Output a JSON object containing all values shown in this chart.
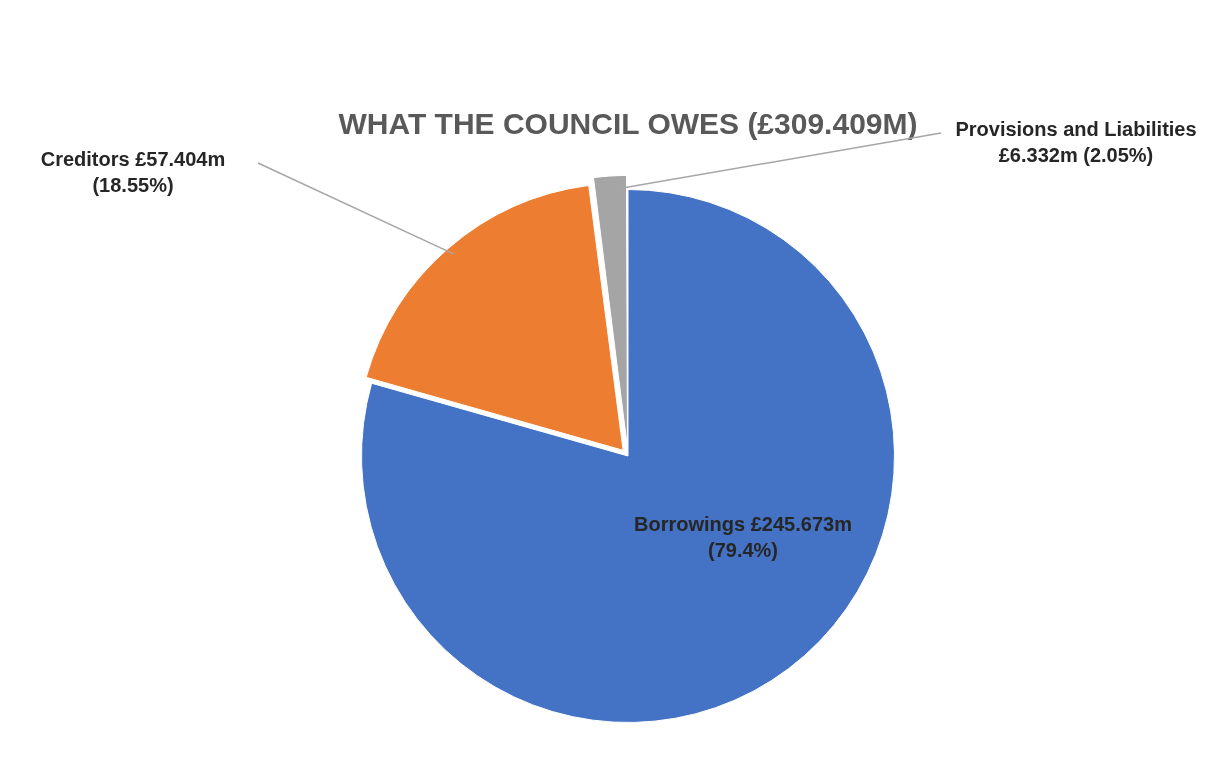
{
  "chart_data": {
    "type": "pie",
    "title": "WHAT THE COUNCIL OWES (£309.409M)",
    "categories": [
      "Borrowings",
      "Creditors",
      "Provisions and Liabilities"
    ],
    "values": [
      79.4,
      18.55,
      2.05
    ],
    "colors": [
      "#4472c4",
      "#ed7d31",
      "#a5a5a5"
    ],
    "value_labels": [
      "£245.673m (79.4%)",
      "£57.404m (18.55%)",
      "£6.332m (2.05%)"
    ],
    "legend": false
  }
}
